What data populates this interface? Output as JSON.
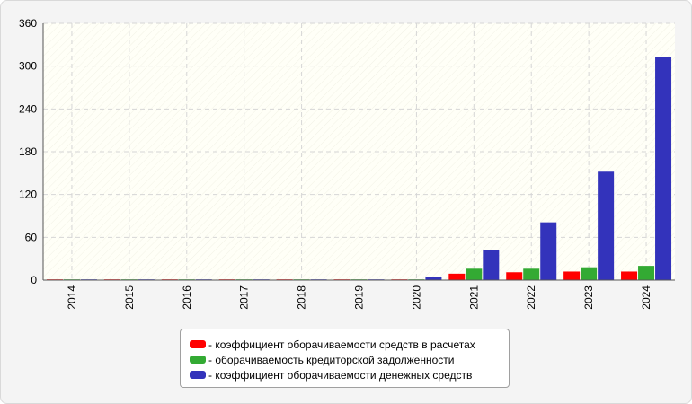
{
  "chart_data": {
    "type": "bar",
    "categories": [
      "2014",
      "2015",
      "2016",
      "2017",
      "2018",
      "2019",
      "2020",
      "2021",
      "2022",
      "2023",
      "2024"
    ],
    "series": [
      {
        "name": "- коэффициент оборачиваемости средств в расчетах",
        "color": "#ff0000",
        "values": [
          1,
          1,
          1,
          1,
          1,
          1,
          1,
          9,
          11,
          12,
          12
        ]
      },
      {
        "name": "- оборачиваемость кредиторской задолженности",
        "color": "#33aa33",
        "values": [
          1,
          1,
          1,
          1,
          1,
          1,
          1,
          16,
          16,
          18,
          20
        ]
      },
      {
        "name": "- коэффициент оборачиваемости денежных средств",
        "color": "#3333bb",
        "values": [
          1,
          1,
          1,
          1,
          1,
          1,
          5,
          42,
          81,
          152,
          313
        ]
      }
    ],
    "yticks": [
      0,
      60,
      120,
      180,
      240,
      300,
      360
    ],
    "ylim": [
      0,
      360
    ],
    "grid": true,
    "legend_position": "bottom-center",
    "title": "",
    "xlabel": "",
    "ylabel": ""
  }
}
